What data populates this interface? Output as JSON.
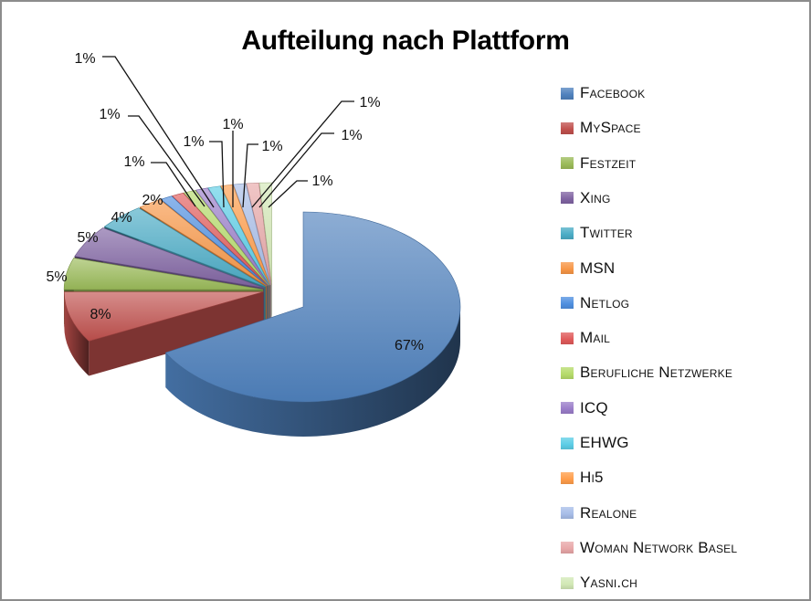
{
  "chart_data": {
    "type": "pie",
    "title": "Aufteilung nach Plattform",
    "style": "3d-exploded",
    "legend_position": "right",
    "categories": [
      "Facebook",
      "MySpace",
      "Festzeit",
      "Xing",
      "Twitter",
      "MSN",
      "Netlog",
      "Mail",
      "Berufliche Netzwerke",
      "ICQ",
      "EHWG",
      "Hi5",
      "Realone",
      "Woman Network Basel",
      "Yasni.ch"
    ],
    "values": [
      67,
      8,
      5,
      5,
      4,
      2,
      1,
      1,
      1,
      1,
      1,
      1,
      1,
      1,
      1
    ],
    "data_labels": [
      "67%",
      "8%",
      "5%",
      "5%",
      "4%",
      "2%",
      "1%",
      "1%",
      "1%",
      "1%",
      "1%",
      "1%",
      "1%",
      "1%",
      "1%"
    ],
    "colors": [
      "#4f81bd",
      "#c0504d",
      "#9bbb59",
      "#8064a2",
      "#4bacc6",
      "#f79646",
      "#4f8fe0",
      "#e05a5a",
      "#b5db6a",
      "#9a7dc9",
      "#5ccde6",
      "#ff9d4a",
      "#a7bde8",
      "#e8a7a8",
      "#d2e8b5"
    ]
  },
  "legend": {
    "items": [
      {
        "label": "Facebook",
        "color": "#4f81bd"
      },
      {
        "label": "MySpace",
        "color": "#c0504d"
      },
      {
        "label": "Festzeit",
        "color": "#9bbb59"
      },
      {
        "label": "Xing",
        "color": "#8064a2"
      },
      {
        "label": "Twitter",
        "color": "#4bacc6"
      },
      {
        "label": "MSN",
        "color": "#f79646"
      },
      {
        "label": "Netlog",
        "color": "#4f8fe0"
      },
      {
        "label": "Mail",
        "color": "#e05a5a"
      },
      {
        "label": "Berufliche Netzwerke",
        "color": "#b5db6a"
      },
      {
        "label": "ICQ",
        "color": "#9a7dc9"
      },
      {
        "label": "EHWG",
        "color": "#5ccde6"
      },
      {
        "label": "Hi5",
        "color": "#ff9d4a"
      },
      {
        "label": "Realone",
        "color": "#a7bde8"
      },
      {
        "label": "Woman Network Basel",
        "color": "#e8a7a8"
      },
      {
        "label": "Yasni.ch",
        "color": "#d2e8b5"
      }
    ]
  }
}
